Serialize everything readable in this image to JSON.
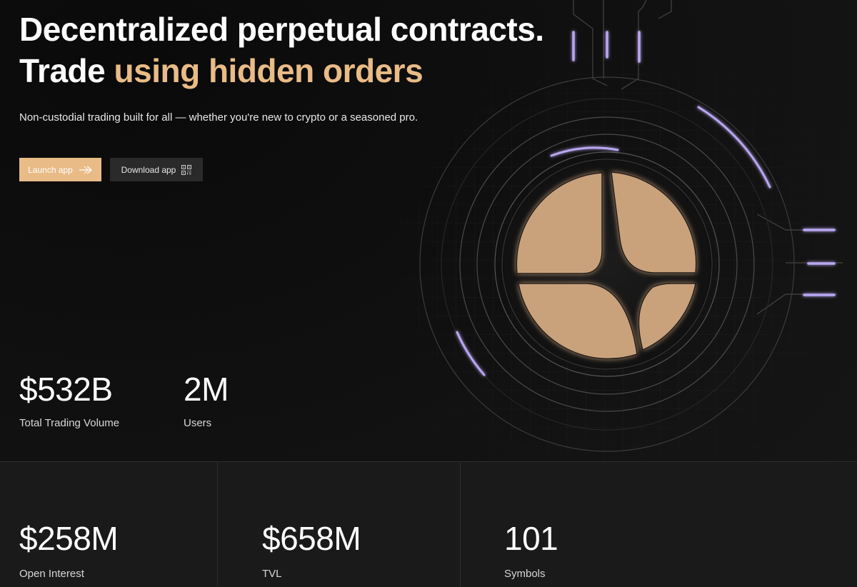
{
  "hero": {
    "headline_line1": "Decentralized perpetual contracts.",
    "headline_line2_prefix": "Trade ",
    "headline_line2_accent": "using hidden orders",
    "subtitle": "Non-custodial trading built for all — whether you're new to crypto or a seasoned pro."
  },
  "buttons": {
    "launch_label": "Launch app",
    "download_label": "Download app"
  },
  "stats_top": [
    {
      "value": "$532B",
      "label": "Total Trading Volume"
    },
    {
      "value": "2M",
      "label": "Users"
    }
  ],
  "stats_bottom": [
    {
      "value": "$258M",
      "label": "Open Interest"
    },
    {
      "value": "$658M",
      "label": "TVL"
    },
    {
      "value": "101",
      "label": "Symbols"
    }
  ],
  "icons": {
    "launch": "arrow-right-icon",
    "download": "qr-code-icon",
    "logo": "logo-emblem"
  },
  "colors": {
    "accent": "#e9bb86",
    "background": "#141414",
    "glow": "#b9a6f0",
    "emblem": "#c9a27c"
  }
}
